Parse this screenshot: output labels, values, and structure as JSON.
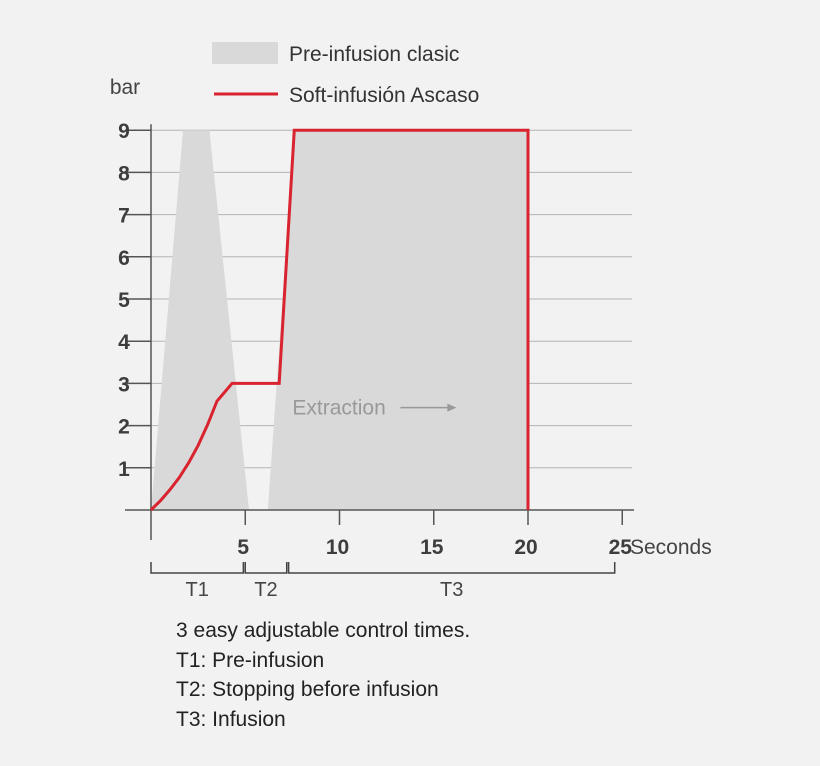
{
  "chart_data": {
    "type": "area",
    "title": "",
    "ylabel": "bar",
    "xlabel": "Seconds",
    "xlim": [
      0,
      26
    ],
    "ylim": [
      0,
      9
    ],
    "x_ticks": [
      5,
      10,
      15,
      20,
      25
    ],
    "y_ticks": [
      1,
      2,
      3,
      4,
      5,
      6,
      7,
      8,
      9
    ],
    "grid": "horizontal",
    "series": [
      {
        "name": "Pre-infusion clasic",
        "style": "filled-area",
        "color": "#d9d9d9",
        "segments": [
          {
            "x": [
              0,
              1.7,
              3.1,
              5.2
            ],
            "y": [
              0,
              9,
              9,
              0
            ]
          },
          {
            "x": [
              6.2,
              7.6,
              20,
              20
            ],
            "y": [
              0,
              9,
              9,
              0
            ]
          }
        ]
      },
      {
        "name": "Soft-infusión Ascaso",
        "style": "line",
        "color": "#d9232e",
        "x": [
          0,
          0.5,
          1,
          1.5,
          2,
          2.5,
          3,
          3.5,
          4.3,
          6.8,
          7.6,
          20,
          20
        ],
        "y": [
          0,
          0.22,
          0.48,
          0.77,
          1.12,
          1.53,
          2.02,
          2.58,
          3,
          3,
          9,
          9,
          0
        ]
      }
    ],
    "phases": [
      {
        "label": "T1",
        "start": 0,
        "end": 4.9
      },
      {
        "label": "T2",
        "start": 5,
        "end": 7.2
      },
      {
        "label": "T3",
        "start": 7.3,
        "end": 24.6
      }
    ],
    "annotations": [
      {
        "text": "Extraction",
        "x": 7.5,
        "y": 2.45,
        "arrow": "right"
      }
    ]
  },
  "notes": {
    "intro": "3 easy adjustable control times.",
    "t1": "T1: Pre-infusion",
    "t2": "T2: Stopping before infusion",
    "t3": "T3: Infusion"
  }
}
